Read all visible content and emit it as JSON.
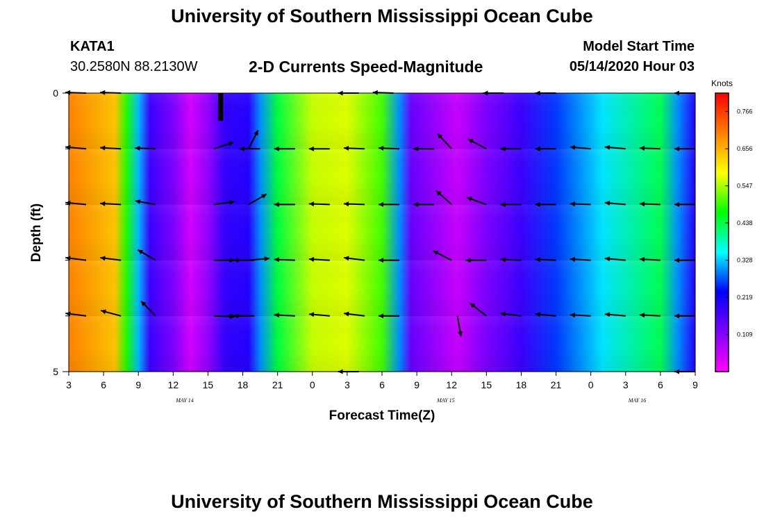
{
  "header": {
    "title": "University of Southern Mississippi Ocean Cube",
    "station_id": "KATA1",
    "station_coords": "30.2580N 88.2130W",
    "subtitle": "2-D Currents Speed-Magnitude",
    "model_label": "Model Start Time",
    "model_time": "05/14/2020 Hour 03"
  },
  "footer": {
    "title": "University of Southern Mississippi Ocean Cube"
  },
  "chart_data": {
    "type": "heatmap",
    "title": "2-D Currents Speed-Magnitude",
    "xlabel": "Forecast Time(Z)",
    "ylabel": "Depth (ft)",
    "x_hours_range": [
      0,
      54
    ],
    "x_tick_labels": [
      "3",
      "6",
      "9",
      "12",
      "15",
      "18",
      "21",
      "0",
      "3",
      "6",
      "9",
      "12",
      "15",
      "18",
      "21",
      "0",
      "3",
      "6",
      "9"
    ],
    "date_labels": [
      {
        "label": "MAY 14",
        "hour": 10
      },
      {
        "label": "MAY 15",
        "hour": 32.5
      },
      {
        "label": "MAY 16",
        "hour": 49
      }
    ],
    "y_range": [
      0,
      5
    ],
    "y_tick_labels": [
      "0",
      "5"
    ],
    "depth_rows": 5,
    "colorbar": {
      "title": "Knots",
      "range": [
        0,
        0.82
      ],
      "tick_labels": [
        "0.766",
        "0.656",
        "0.547",
        "0.438",
        "0.328",
        "0.219",
        "0.109"
      ],
      "tick_values": [
        0.766,
        0.656,
        0.547,
        0.438,
        0.328,
        0.219,
        0.109
      ],
      "stops": [
        "#ff00ff",
        "#7f00ff",
        "#0000ff",
        "#00ffff",
        "#00ff00",
        "#ffff00",
        "#ff8000",
        "#ff0000"
      ]
    },
    "speed_profile": [
      {
        "hour": 0,
        "speed": 0.7
      },
      {
        "hour": 4,
        "speed": 0.64
      },
      {
        "hour": 5,
        "speed": 0.48
      },
      {
        "hour": 6,
        "speed": 0.32
      },
      {
        "hour": 7,
        "speed": 0.18
      },
      {
        "hour": 9,
        "speed": 0.12
      },
      {
        "hour": 10.5,
        "speed": 0.04
      },
      {
        "hour": 12,
        "speed": 0.1
      },
      {
        "hour": 13.5,
        "speed": 0.19
      },
      {
        "hour": 15.5,
        "speed": 0.2
      },
      {
        "hour": 16.5,
        "speed": 0.3
      },
      {
        "hour": 18,
        "speed": 0.44
      },
      {
        "hour": 21,
        "speed": 0.56
      },
      {
        "hour": 24,
        "speed": 0.57
      },
      {
        "hour": 27,
        "speed": 0.5
      },
      {
        "hour": 28.5,
        "speed": 0.3
      },
      {
        "hour": 29.5,
        "speed": 0.14
      },
      {
        "hour": 33.5,
        "speed": 0.05
      },
      {
        "hour": 36,
        "speed": 0.12
      },
      {
        "hour": 39,
        "speed": 0.18
      },
      {
        "hour": 42,
        "speed": 0.26
      },
      {
        "hour": 46,
        "speed": 0.34
      },
      {
        "hour": 51,
        "speed": 0.43
      },
      {
        "hour": 52.5,
        "speed": 0.3
      },
      {
        "hour": 54,
        "speed": 0.2
      }
    ],
    "vectors": [
      {
        "hour": 1.5,
        "depth": 0,
        "dir": 178
      },
      {
        "hour": 4.5,
        "depth": 0,
        "dir": 178
      },
      {
        "hour": 25,
        "depth": 0,
        "dir": 180
      },
      {
        "hour": 28,
        "depth": 0,
        "dir": 178
      },
      {
        "hour": 37.5,
        "depth": 0,
        "dir": 180
      },
      {
        "hour": 42,
        "depth": 0,
        "dir": 180
      },
      {
        "hour": 54,
        "depth": 0,
        "dir": 180
      },
      {
        "hour": 1.5,
        "depth": 1,
        "dir": 175
      },
      {
        "hour": 4.5,
        "depth": 1,
        "dir": 177
      },
      {
        "hour": 7.5,
        "depth": 1,
        "dir": 178
      },
      {
        "hour": 12.5,
        "depth": 1,
        "dir": 18
      },
      {
        "hour": 15.5,
        "depth": 1,
        "dir": 63
      },
      {
        "hour": 16.5,
        "depth": 1,
        "dir": 180
      },
      {
        "hour": 19.5,
        "depth": 1,
        "dir": 180
      },
      {
        "hour": 22.5,
        "depth": 1,
        "dir": 180
      },
      {
        "hour": 25.5,
        "depth": 1,
        "dir": 178
      },
      {
        "hour": 28.5,
        "depth": 1,
        "dir": 178
      },
      {
        "hour": 31.5,
        "depth": 1,
        "dir": 180
      },
      {
        "hour": 33,
        "depth": 1,
        "dir": 133
      },
      {
        "hour": 36,
        "depth": 1,
        "dir": 152
      },
      {
        "hour": 39,
        "depth": 1,
        "dir": 180
      },
      {
        "hour": 42,
        "depth": 1,
        "dir": 180
      },
      {
        "hour": 45,
        "depth": 1,
        "dir": 175
      },
      {
        "hour": 48,
        "depth": 1,
        "dir": 175
      },
      {
        "hour": 51,
        "depth": 1,
        "dir": 178
      },
      {
        "hour": 54,
        "depth": 1,
        "dir": 180
      },
      {
        "hour": 1.5,
        "depth": 2,
        "dir": 175
      },
      {
        "hour": 4.5,
        "depth": 2,
        "dir": 177
      },
      {
        "hour": 7.5,
        "depth": 2,
        "dir": 170
      },
      {
        "hour": 12.5,
        "depth": 2,
        "dir": 8
      },
      {
        "hour": 15.5,
        "depth": 2,
        "dir": 30
      },
      {
        "hour": 19.5,
        "depth": 2,
        "dir": 180
      },
      {
        "hour": 22.5,
        "depth": 2,
        "dir": 178
      },
      {
        "hour": 25.5,
        "depth": 2,
        "dir": 178
      },
      {
        "hour": 28.5,
        "depth": 2,
        "dir": 180
      },
      {
        "hour": 31.5,
        "depth": 2,
        "dir": 180
      },
      {
        "hour": 33,
        "depth": 2,
        "dir": 138
      },
      {
        "hour": 36,
        "depth": 2,
        "dir": 160
      },
      {
        "hour": 39,
        "depth": 2,
        "dir": 180
      },
      {
        "hour": 42,
        "depth": 2,
        "dir": 180
      },
      {
        "hour": 45,
        "depth": 2,
        "dir": 178
      },
      {
        "hour": 48,
        "depth": 2,
        "dir": 175
      },
      {
        "hour": 51,
        "depth": 2,
        "dir": 178
      },
      {
        "hour": 54,
        "depth": 2,
        "dir": 180
      },
      {
        "hour": 1.5,
        "depth": 3,
        "dir": 173
      },
      {
        "hour": 4.5,
        "depth": 3,
        "dir": 173
      },
      {
        "hour": 7.5,
        "depth": 3,
        "dir": 150
      },
      {
        "hour": 12.5,
        "depth": 3,
        "dir": 0
      },
      {
        "hour": 15.5,
        "depth": 3,
        "dir": 5
      },
      {
        "hour": 16,
        "depth": 3,
        "dir": 180
      },
      {
        "hour": 19.5,
        "depth": 3,
        "dir": 178
      },
      {
        "hour": 22.5,
        "depth": 3,
        "dir": 177
      },
      {
        "hour": 25.5,
        "depth": 3,
        "dir": 173
      },
      {
        "hour": 28.5,
        "depth": 3,
        "dir": 180
      },
      {
        "hour": 33,
        "depth": 3,
        "dir": 153
      },
      {
        "hour": 36,
        "depth": 3,
        "dir": 180
      },
      {
        "hour": 39,
        "depth": 3,
        "dir": 178
      },
      {
        "hour": 42,
        "depth": 3,
        "dir": 178
      },
      {
        "hour": 45,
        "depth": 3,
        "dir": 177
      },
      {
        "hour": 48,
        "depth": 3,
        "dir": 175
      },
      {
        "hour": 51,
        "depth": 3,
        "dir": 177
      },
      {
        "hour": 54,
        "depth": 3,
        "dir": 180
      },
      {
        "hour": 1.5,
        "depth": 4,
        "dir": 173
      },
      {
        "hour": 4.5,
        "depth": 4,
        "dir": 165
      },
      {
        "hour": 7.5,
        "depth": 4,
        "dir": 135
      },
      {
        "hour": 12.5,
        "depth": 4,
        "dir": -2
      },
      {
        "hour": 15.5,
        "depth": 4,
        "dir": 180
      },
      {
        "hour": 16,
        "depth": 4,
        "dir": 180
      },
      {
        "hour": 19.5,
        "depth": 4,
        "dir": 177
      },
      {
        "hour": 22.5,
        "depth": 4,
        "dir": 175
      },
      {
        "hour": 25.5,
        "depth": 4,
        "dir": 173
      },
      {
        "hour": 28.5,
        "depth": 4,
        "dir": 180
      },
      {
        "hour": 33.5,
        "depth": 4,
        "dir": -80
      },
      {
        "hour": 36,
        "depth": 4,
        "dir": 142
      },
      {
        "hour": 39,
        "depth": 4,
        "dir": 173
      },
      {
        "hour": 42,
        "depth": 4,
        "dir": 175
      },
      {
        "hour": 45,
        "depth": 4,
        "dir": 177
      },
      {
        "hour": 48,
        "depth": 4,
        "dir": 175
      },
      {
        "hour": 51,
        "depth": 4,
        "dir": 177
      },
      {
        "hour": 54,
        "depth": 4,
        "dir": 180
      },
      {
        "hour": 25,
        "depth": 5,
        "dir": 180
      },
      {
        "hour": 54,
        "depth": 5,
        "dir": 180
      }
    ]
  }
}
